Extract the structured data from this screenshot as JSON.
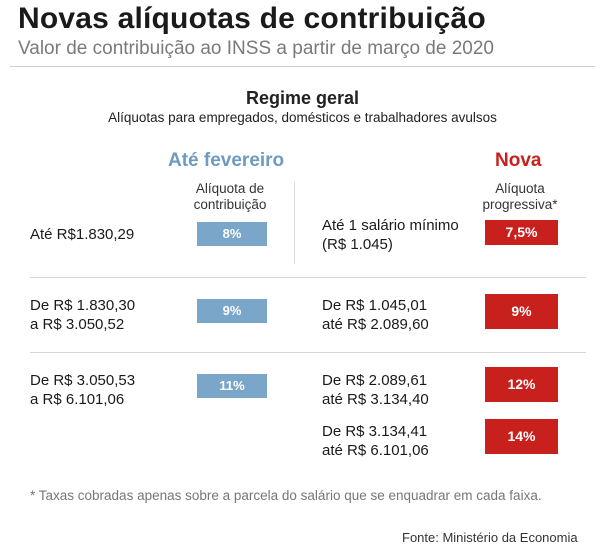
{
  "header": {
    "title": "Novas alíquotas de contribuição",
    "subtitle": "Valor de contribuição ao INSS a partir de março de 2020"
  },
  "section": {
    "title": "Regime geral",
    "subtitle": "Alíquotas para empregados, domésticos e trabalhadores avulsos"
  },
  "left": {
    "heading": "Até fevereiro",
    "column_label": "Alíquota de contribuição",
    "colors": {
      "heading": "#6e9bc2",
      "pill": "#7aa6ca"
    },
    "rows": [
      {
        "range_line1": "Até R$1.830,29",
        "range_line2": "",
        "rate": "8%"
      },
      {
        "range_line1": "De R$ 1.830,30",
        "range_line2": "a R$ 3.050,52",
        "rate": "9%"
      },
      {
        "range_line1": "De R$ 3.050,53",
        "range_line2": "a R$ 6.101,06",
        "rate": "11%"
      }
    ]
  },
  "right": {
    "heading": "Nova",
    "column_label": "Alíquota progressiva*",
    "colors": {
      "heading": "#c8201c",
      "pill": "#c8201c"
    },
    "rows": [
      {
        "range_line1": "Até 1 salário mínimo",
        "range_line2": "(R$ 1.045)",
        "rate": "7,5%"
      },
      {
        "range_line1": "De R$ 1.045,01",
        "range_line2": "até R$ 2.089,60",
        "rate": "9%"
      },
      {
        "range_line1": "De R$ 2.089,61",
        "range_line2": "até R$ 3.134,40",
        "rate": "12%"
      },
      {
        "range_line1": "De R$ 3.134,41",
        "range_line2": "até R$ 6.101,06",
        "rate": "14%"
      }
    ]
  },
  "footnote": "* Taxas cobradas apenas sobre a parcela do salário que se enquadrar em cada faixa.",
  "source": "Fonte: Ministério da Economia"
}
